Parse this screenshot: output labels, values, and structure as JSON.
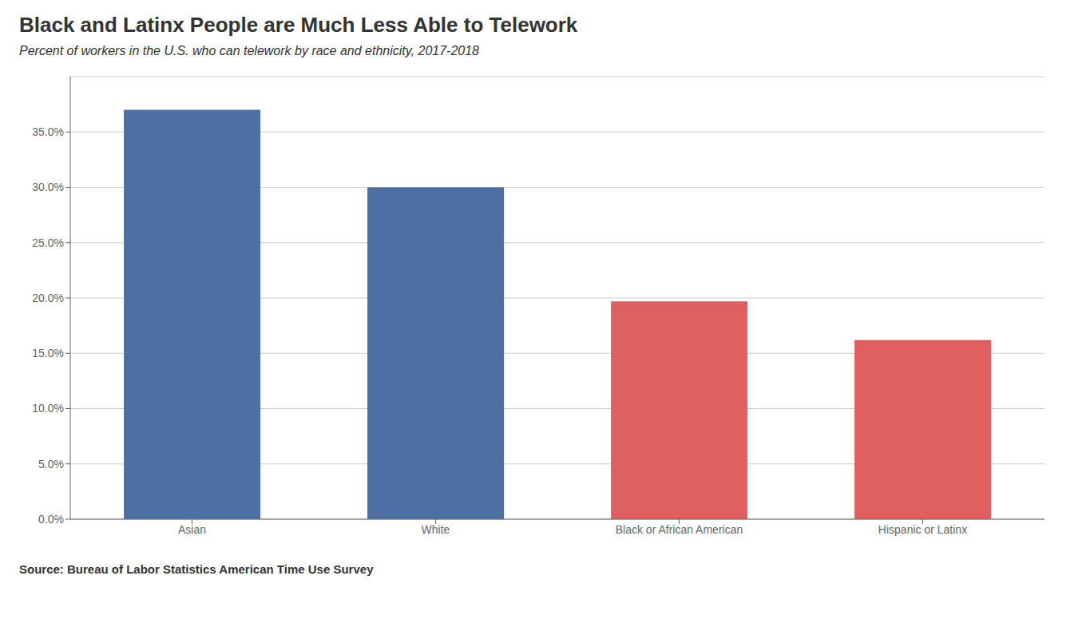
{
  "chart_data": {
    "type": "bar",
    "title": "Black and Latinx People are Much Less Able to Telework",
    "subtitle": "Percent of workers in the U.S. who can telework by race and ethnicity, 2017-2018",
    "annotations": [
      "Source: Bureau of Labor Statistics American Time Use Survey"
    ],
    "categories": [
      "Asian",
      "White",
      "Black or African American",
      "Hispanic or Latinx"
    ],
    "values": [
      37.0,
      30.0,
      19.7,
      16.2
    ],
    "colors": [
      "#4e6fa3",
      "#4e6fa3",
      "#e06060",
      "#e06060"
    ],
    "ylim": [
      0,
      40
    ],
    "yticks": [
      {
        "value": 0.0,
        "label": "0.0%"
      },
      {
        "value": 5.0,
        "label": "5.0%"
      },
      {
        "value": 10.0,
        "label": "10.0%"
      },
      {
        "value": 15.0,
        "label": "15.0%"
      },
      {
        "value": 20.0,
        "label": "20.0%"
      },
      {
        "value": 25.0,
        "label": "25.0%"
      },
      {
        "value": 30.0,
        "label": "30.0%"
      },
      {
        "value": 35.0,
        "label": "35.0%"
      }
    ],
    "grid": true
  }
}
